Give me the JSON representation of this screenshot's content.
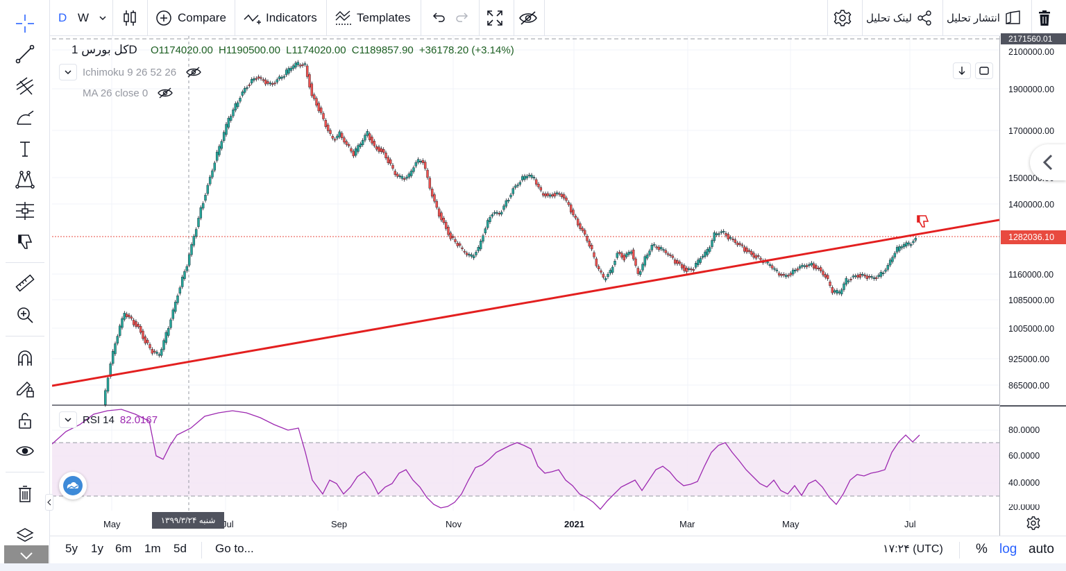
{
  "toolbar": {
    "interval_d": "D",
    "interval_w": "W",
    "compare_label": "Compare",
    "indicators_label": "Indicators",
    "templates_label": "Templates",
    "link_label": "لینک تحلیل",
    "publish_label": "انتشار تحلیل"
  },
  "legend": {
    "symbol": "کل بورس",
    "interval": "1D",
    "open": "O1174020.00",
    "high": "H1190500.00",
    "low": "L1174020.00",
    "close": "C1189857.90",
    "change": "+36178.20 (+3.14%)",
    "ichimoku": "Ichimoku 9 26 52 26",
    "ma": "MA 26 close 0",
    "rsi_name": "RSI 14",
    "rsi_value": "82.0167"
  },
  "price_axis": {
    "labels": [
      "2100000.00",
      "1900000.00",
      "1700000.00",
      "1500000.00",
      "1400000.00",
      "1160000.00",
      "1085000.00",
      "1005000.00",
      "925000.00",
      "865000.00"
    ],
    "top_label": "2171560.01",
    "current_price": "1282036.10"
  },
  "rsi_axis": {
    "labels": [
      "80.0000",
      "60.0000",
      "40.0000",
      "20.0000"
    ]
  },
  "time_axis": {
    "labels": [
      "May",
      "Jul",
      "Sep",
      "Nov",
      "2021",
      "Mar",
      "May",
      "Jul"
    ],
    "crosshair_date": "شنبه ۱۳۹۹/۳/۲۴"
  },
  "bottom_bar": {
    "ranges": [
      "5y",
      "1y",
      "6m",
      "1m",
      "5d"
    ],
    "goto": "Go to...",
    "time": "۱۷:۲۴ (UTC)",
    "percent": "%",
    "log": "log",
    "auto": "auto"
  },
  "colors": {
    "up": "#26a69a",
    "down": "#ef5350",
    "trendline": "#e31f1f",
    "rsi_line": "#9c27b0",
    "rsi_band": "#f3e5f5",
    "accent": "#2962ff",
    "price_label_bg": "#e84a3f"
  },
  "icons": [
    "crosshair-icon",
    "trendline-icon",
    "pitchfork-icon",
    "brush-icon",
    "text-icon",
    "pattern-icon",
    "measure-icon",
    "thumb-down-icon",
    "ruler-icon",
    "zoom-in-icon",
    "magnet-icon",
    "lock-pencil-icon",
    "unlock-icon",
    "eye-icon",
    "trash-icon",
    "layers-icon"
  ]
}
